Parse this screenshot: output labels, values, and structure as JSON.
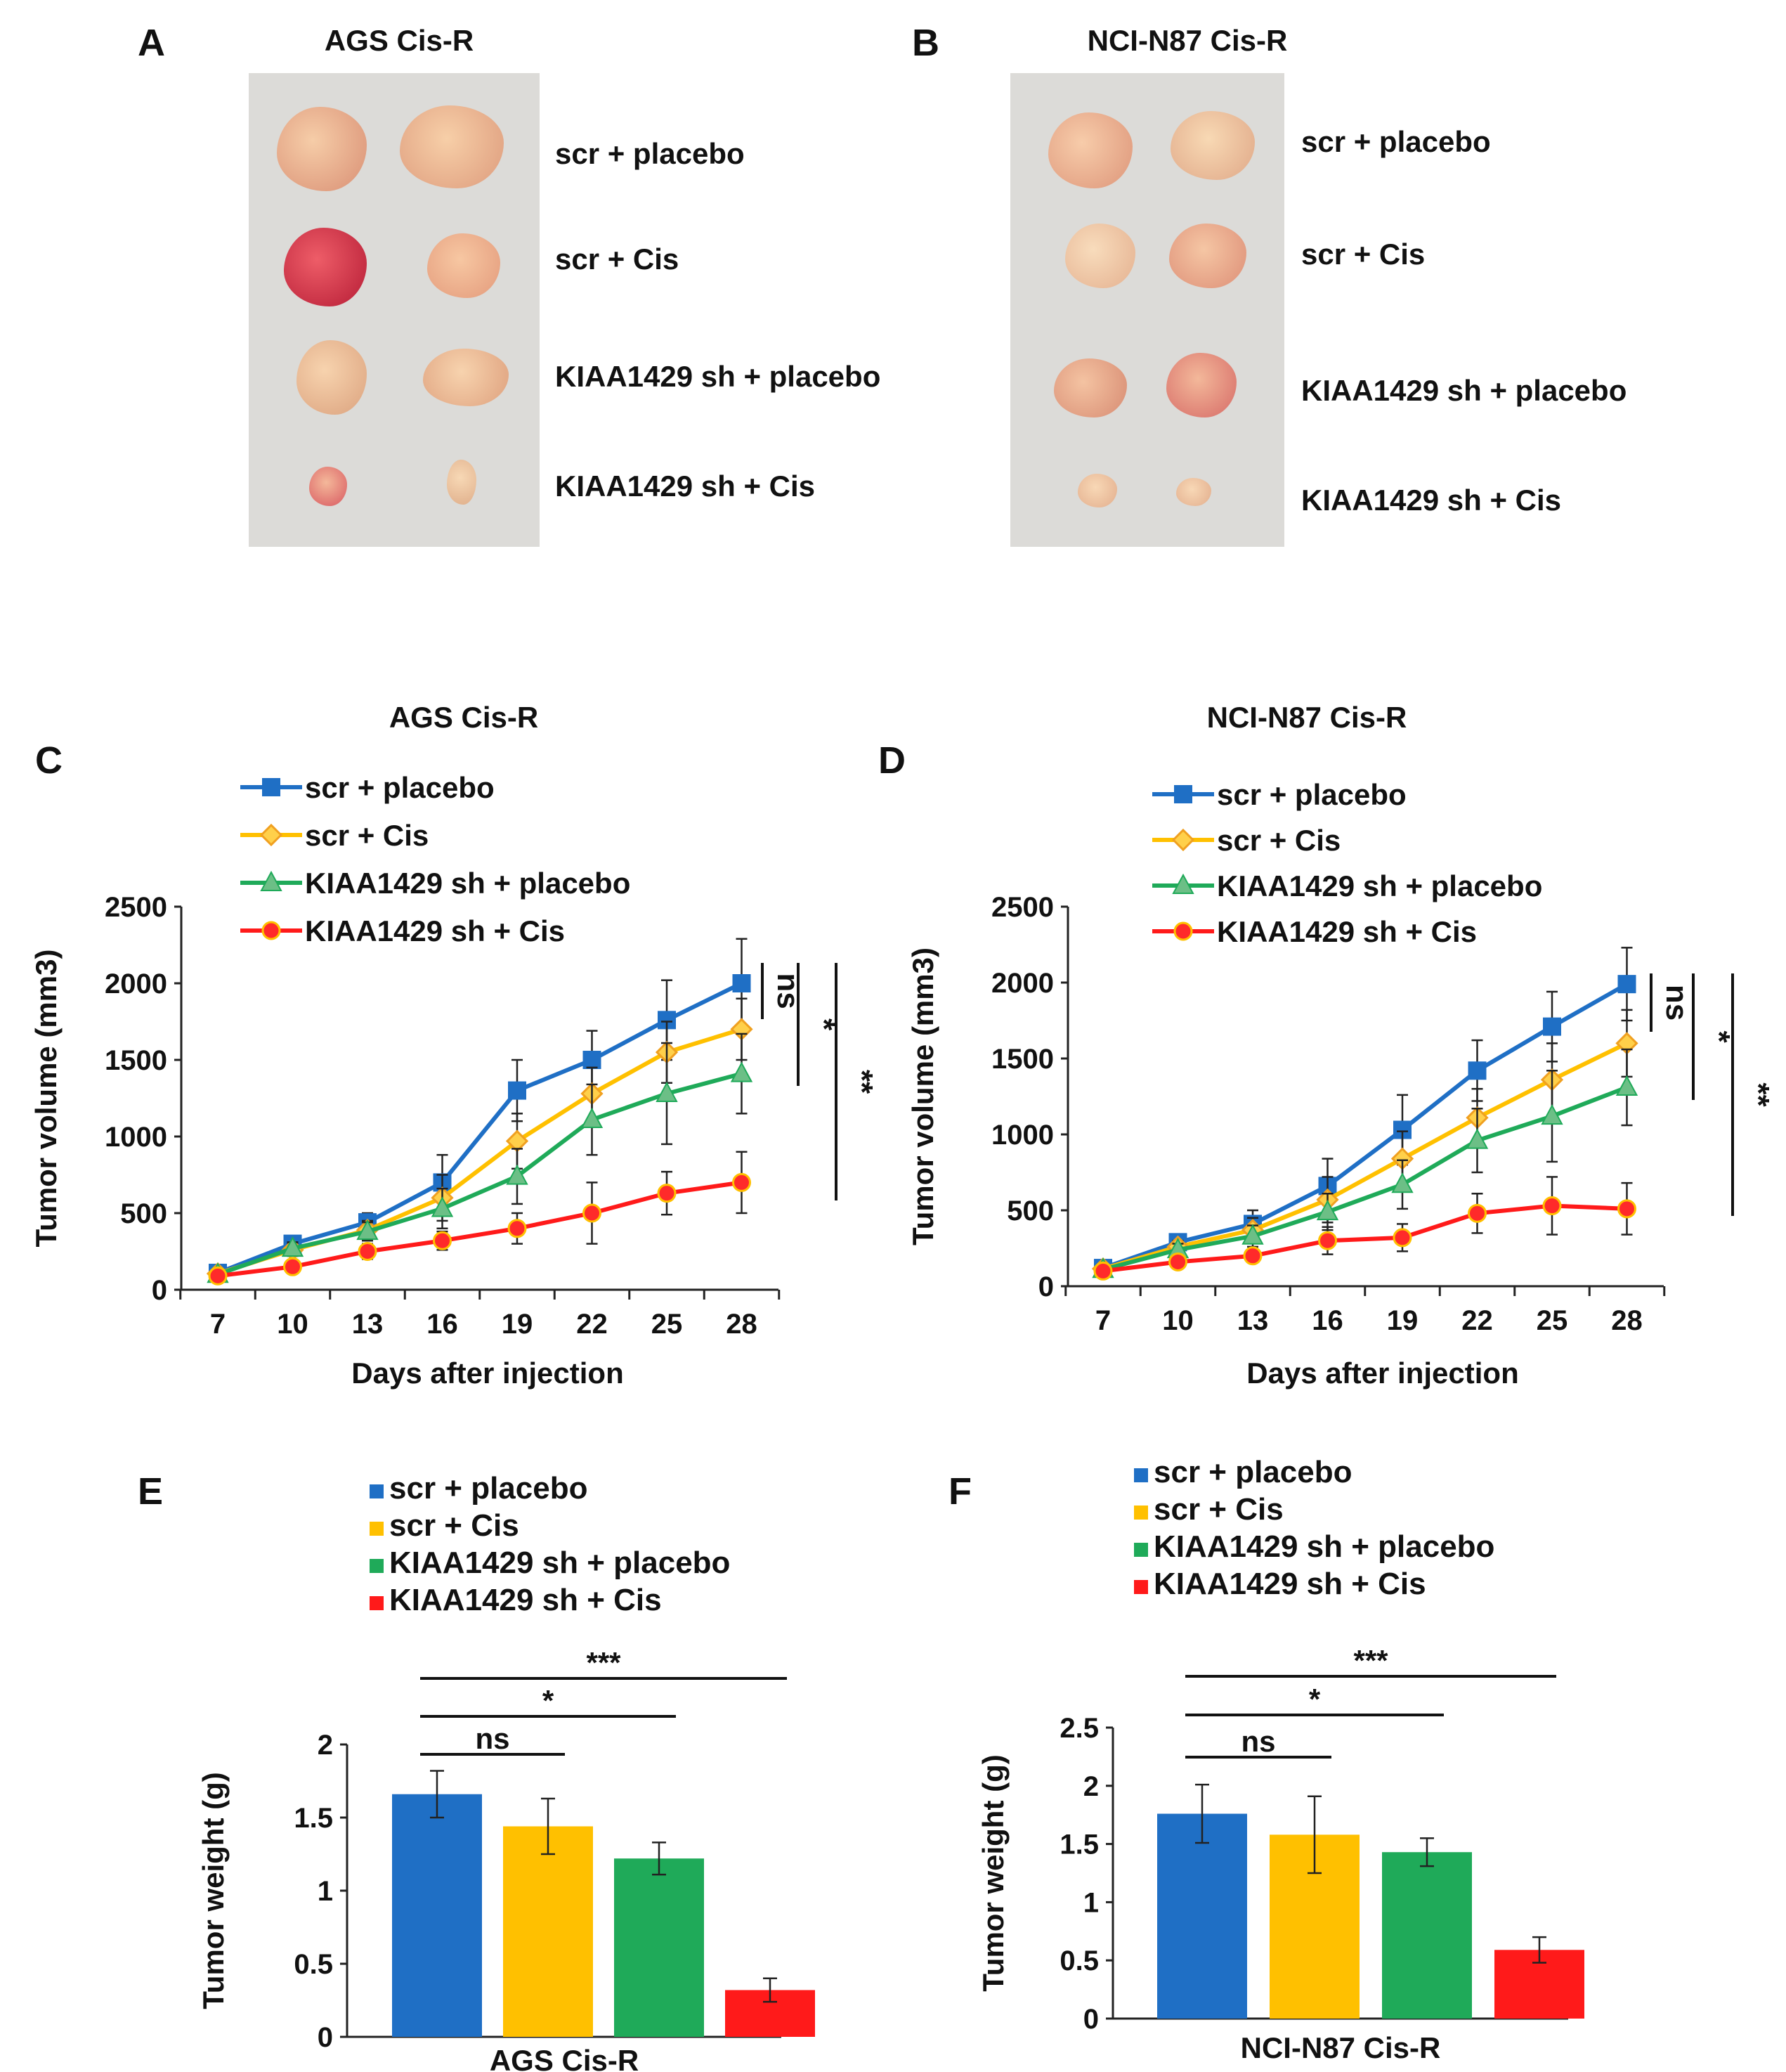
{
  "panels": {
    "A": {
      "letter": "A",
      "title": "AGS Cis-R",
      "labels": [
        "scr + placebo",
        "scr + Cis",
        "KIAA1429 sh + placebo",
        "KIAA1429 sh + Cis"
      ]
    },
    "B": {
      "letter": "B",
      "title": "NCI-N87 Cis-R",
      "labels": [
        "scr + placebo",
        "scr + Cis",
        "KIAA1429 sh + placebo",
        "KIAA1429 sh + Cis"
      ]
    },
    "C": {
      "letter": "C"
    },
    "D": {
      "letter": "D"
    },
    "E": {
      "letter": "E"
    },
    "F": {
      "letter": "F"
    }
  },
  "colors": {
    "scr_placebo": "#1f6fc5",
    "scr_cis": "#ffc000",
    "sh_placebo": "#1faa59",
    "sh_cis": "#ff1a1a"
  },
  "chart_data": [
    {
      "panel": "C",
      "type": "line",
      "title": "AGS Cis-R",
      "xlabel": "Days after injection",
      "ylabel": "Tumor volume (mm3)",
      "x": [
        7,
        10,
        13,
        16,
        19,
        22,
        25,
        28
      ],
      "xticks": [
        "7",
        "10",
        "13",
        "16",
        "19",
        "22",
        "25",
        "28"
      ],
      "ylim": [
        0,
        2500
      ],
      "yticks": [
        "0",
        "500",
        "1000",
        "1500",
        "2000",
        "2500"
      ],
      "legend": "top-left",
      "series": [
        {
          "name": "scr + placebo",
          "marker": "square",
          "values": [
            110,
            300,
            440,
            700,
            1300,
            1500,
            1760,
            2000
          ],
          "errors": [
            20,
            40,
            60,
            180,
            200,
            190,
            260,
            290
          ]
        },
        {
          "name": "scr + Cis",
          "marker": "diamond",
          "values": [
            105,
            260,
            390,
            600,
            970,
            1280,
            1550,
            1700
          ],
          "errors": [
            20,
            40,
            60,
            150,
            180,
            170,
            200,
            200
          ]
        },
        {
          "name": "KIAA1429 sh + placebo",
          "marker": "triangle",
          "values": [
            100,
            270,
            380,
            530,
            740,
            1110,
            1280,
            1410
          ],
          "errors": [
            20,
            40,
            60,
            130,
            180,
            230,
            330,
            260
          ]
        },
        {
          "name": "KIAA1429 sh + Cis",
          "marker": "circle",
          "values": [
            90,
            150,
            250,
            320,
            400,
            500,
            630,
            700
          ],
          "errors": [
            20,
            30,
            50,
            60,
            100,
            200,
            140,
            200
          ]
        }
      ],
      "significance": [
        "ns",
        "*",
        "**"
      ]
    },
    {
      "panel": "D",
      "type": "line",
      "title": "NCI-N87 Cis-R",
      "xlabel": "Days after injection",
      "ylabel": "Tumor volume (mm3)",
      "x": [
        7,
        10,
        13,
        16,
        19,
        22,
        25,
        28
      ],
      "xticks": [
        "7",
        "10",
        "13",
        "16",
        "19",
        "22",
        "25",
        "28"
      ],
      "ylim": [
        0,
        2500
      ],
      "yticks": [
        "0",
        "500",
        "1000",
        "1500",
        "2000",
        "2500"
      ],
      "legend": "top-left",
      "series": [
        {
          "name": "scr + placebo",
          "marker": "square",
          "values": [
            120,
            290,
            410,
            660,
            1030,
            1420,
            1710,
            1990
          ],
          "errors": [
            20,
            40,
            90,
            180,
            230,
            200,
            230,
            240
          ]
        },
        {
          "name": "scr + Cis",
          "marker": "diamond",
          "values": [
            115,
            260,
            370,
            570,
            840,
            1110,
            1360,
            1600
          ],
          "errors": [
            20,
            40,
            80,
            150,
            180,
            190,
            240,
            220
          ]
        },
        {
          "name": "KIAA1429 sh + placebo",
          "marker": "triangle",
          "values": [
            110,
            240,
            330,
            490,
            670,
            960,
            1120,
            1310
          ],
          "errors": [
            20,
            40,
            70,
            120,
            160,
            210,
            300,
            250
          ]
        },
        {
          "name": "KIAA1429 sh + Cis",
          "marker": "circle",
          "values": [
            100,
            160,
            200,
            300,
            320,
            480,
            530,
            510
          ],
          "errors": [
            20,
            30,
            40,
            90,
            90,
            130,
            190,
            170
          ]
        }
      ],
      "significance": [
        "ns",
        "*",
        "**"
      ]
    },
    {
      "panel": "E",
      "type": "bar",
      "title": "",
      "xlabel": "AGS Cis-R",
      "ylabel": "Tumor weight (g)",
      "categories": [
        "scr + placebo",
        "scr + Cis",
        "KIAA1429 sh + placebo",
        "KIAA1429 sh + Cis"
      ],
      "values": [
        1.66,
        1.44,
        1.22,
        0.32
      ],
      "errors": [
        0.16,
        0.19,
        0.11,
        0.08
      ],
      "ylim": [
        0,
        2
      ],
      "yticks": [
        "0",
        "0.5",
        "1",
        "1.5",
        "2"
      ],
      "legend": "top",
      "comparisons": [
        {
          "label": "ns",
          "from": 0,
          "to": 1
        },
        {
          "label": "*",
          "from": 0,
          "to": 2
        },
        {
          "label": "***",
          "from": 0,
          "to": 3
        }
      ]
    },
    {
      "panel": "F",
      "type": "bar",
      "title": "",
      "xlabel": "NCI-N87 Cis-R",
      "ylabel": "Tumor weight (g)",
      "categories": [
        "scr + placebo",
        "scr + Cis",
        "KIAA1429 sh + placebo",
        "KIAA1429 sh + Cis"
      ],
      "values": [
        1.76,
        1.58,
        1.43,
        0.59
      ],
      "errors": [
        0.25,
        0.33,
        0.12,
        0.11
      ],
      "ylim": [
        0,
        2.5
      ],
      "yticks": [
        "0",
        "0.5",
        "1",
        "1.5",
        "2",
        "2.5"
      ],
      "legend": "top",
      "comparisons": [
        {
          "label": "ns",
          "from": 0,
          "to": 1
        },
        {
          "label": "*",
          "from": 0,
          "to": 2
        },
        {
          "label": "***",
          "from": 0,
          "to": 3
        }
      ]
    }
  ]
}
